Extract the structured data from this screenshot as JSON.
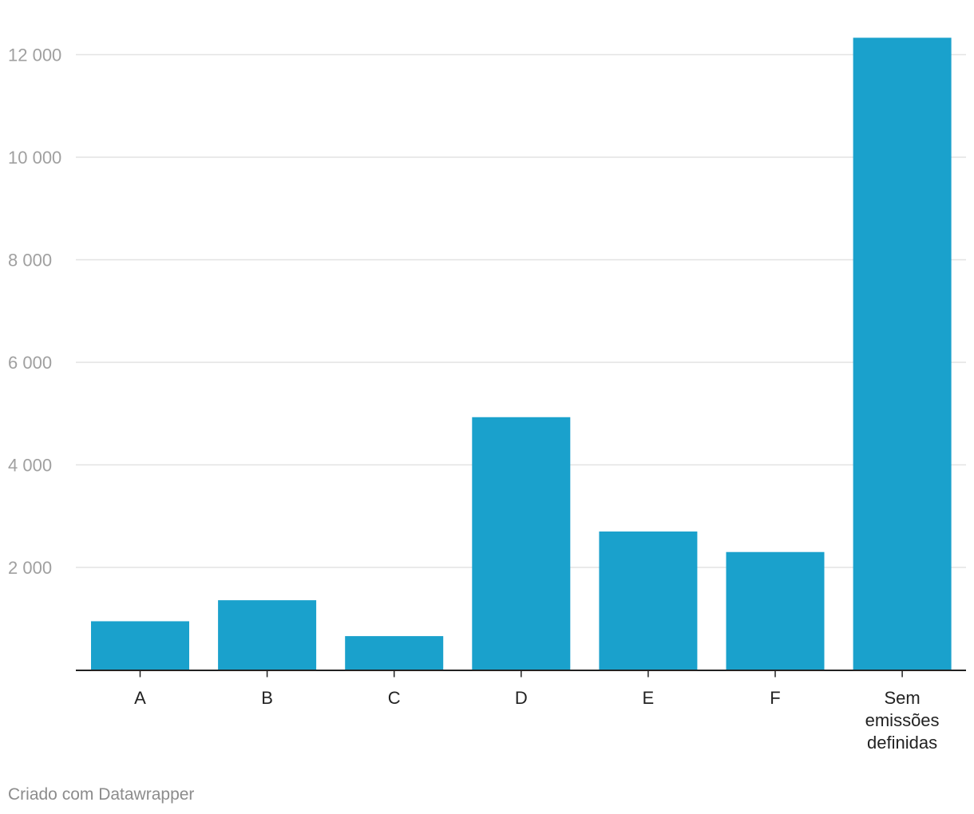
{
  "chart_data": {
    "type": "bar",
    "categories": [
      "A",
      "B",
      "C",
      "D",
      "E",
      "F",
      "Sem emissões definidas"
    ],
    "category_lines": [
      [
        "A"
      ],
      [
        "B"
      ],
      [
        "C"
      ],
      [
        "D"
      ],
      [
        "E"
      ],
      [
        "F"
      ],
      [
        "Sem",
        "emissões",
        "definidas"
      ]
    ],
    "values": [
      950,
      1360,
      660,
      4930,
      2700,
      2300,
      12330
    ],
    "ylim": [
      0,
      12000
    ],
    "yticks": [
      2000,
      4000,
      6000,
      8000,
      10000,
      12000
    ],
    "ytick_labels": [
      "2 000",
      "4 000",
      "6 000",
      "8 000",
      "10 000",
      "12 000"
    ],
    "grid": true,
    "bar_color": "#1aa1cc",
    "grid_color": "#e3e3e3",
    "axis_color": "#222222"
  },
  "footer": {
    "credit": "Criado com Datawrapper"
  }
}
